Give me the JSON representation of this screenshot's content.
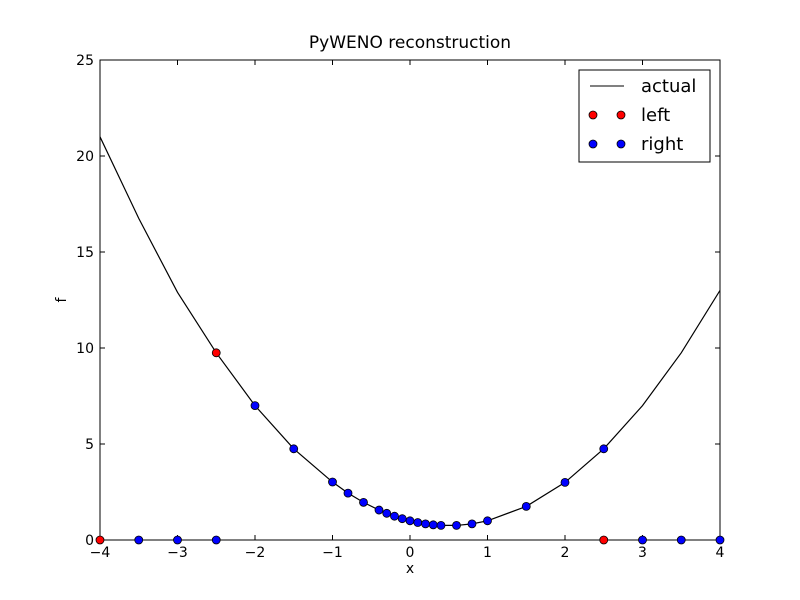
{
  "chart_data": {
    "type": "line",
    "title": "PyWENO reconstruction",
    "xlabel": "x",
    "ylabel": "f",
    "xlim": [
      -4,
      4
    ],
    "ylim": [
      0,
      25
    ],
    "xticks": [
      -4,
      -3,
      -2,
      -1,
      0,
      1,
      2,
      3,
      4
    ],
    "xtick_labels": [
      "−4",
      "−3",
      "−2",
      "−1",
      "0",
      "1",
      "2",
      "3",
      "4"
    ],
    "yticks": [
      0,
      5,
      10,
      15,
      20,
      25
    ],
    "ytick_labels": [
      "0",
      "5",
      "10",
      "15",
      "20",
      "25"
    ],
    "grid": false,
    "legend_position": "top-right",
    "series": [
      {
        "name": "actual",
        "style": "line",
        "color": "#000000",
        "x": [
          -4,
          -3.5,
          -3,
          -2.5,
          -2,
          -1.5,
          -1,
          -0.8,
          -0.6,
          -0.4,
          -0.3,
          -0.2,
          -0.1,
          0,
          0.1,
          0.2,
          0.3,
          0.4,
          0.6,
          0.8,
          1,
          1.5,
          2,
          2.5,
          3,
          3.5,
          4
        ],
        "y": [
          21,
          16.75,
          12.9,
          9.75,
          7,
          4.75,
          3.02,
          2.44,
          1.96,
          1.56,
          1.39,
          1.24,
          1.11,
          1.0,
          0.91,
          0.84,
          0.79,
          0.76,
          0.76,
          0.84,
          1.0,
          1.75,
          3.0,
          4.75,
          7.0,
          9.75,
          13.0
        ]
      },
      {
        "name": "left",
        "style": "markers",
        "color": "#ff0000",
        "x": [
          -4,
          -2.5,
          2.5
        ],
        "y": [
          0,
          9.75,
          0
        ]
      },
      {
        "name": "right",
        "style": "markers",
        "color": "#0000ff",
        "x": [
          -3.5,
          -3,
          -2.5,
          -2,
          -1.5,
          -1,
          -0.8,
          -0.6,
          -0.4,
          -0.3,
          -0.2,
          -0.1,
          0,
          0.1,
          0.2,
          0.3,
          0.4,
          0.6,
          0.8,
          1,
          1.5,
          2,
          2.5,
          3,
          3.5,
          4
        ],
        "y": [
          0,
          0,
          0,
          7,
          4.75,
          3.02,
          2.44,
          1.96,
          1.56,
          1.39,
          1.24,
          1.11,
          1.0,
          0.91,
          0.84,
          0.79,
          0.76,
          0.76,
          0.84,
          1.0,
          1.75,
          3.0,
          4.75,
          0,
          0,
          0
        ]
      }
    ]
  }
}
